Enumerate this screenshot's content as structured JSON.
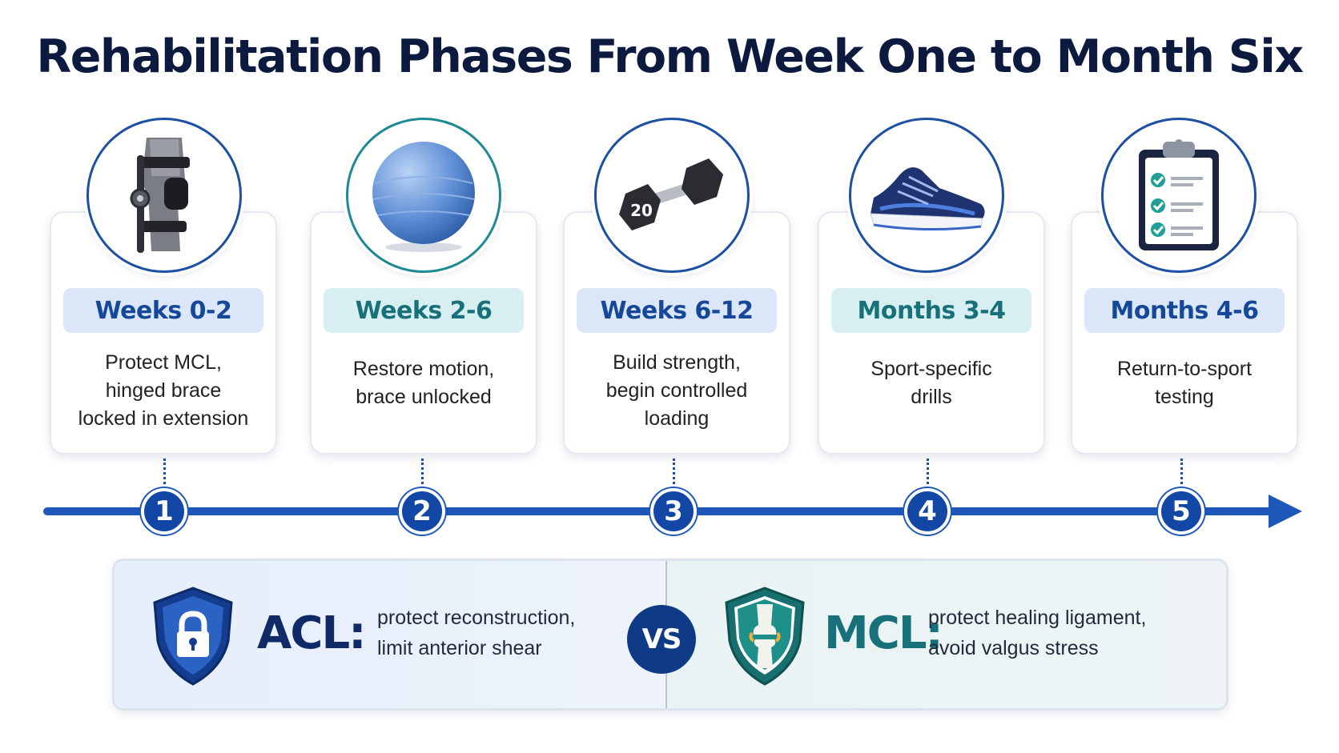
{
  "title": "Rehabilitation Phases From Week One to Month Six",
  "phases": [
    {
      "step": "1",
      "period": "Weeks 0-2",
      "line1": "Protect MCL,",
      "line2": "hinged brace",
      "line3": "locked in extension",
      "icon": "knee-brace-icon"
    },
    {
      "step": "2",
      "period": "Weeks 2-6",
      "line1": "Restore motion,",
      "line2": "brace unlocked",
      "line3": "",
      "icon": "exercise-ball-icon"
    },
    {
      "step": "3",
      "period": "Weeks 6-12",
      "line1": "Build strength,",
      "line2": "begin controlled",
      "line3": "loading",
      "icon": "dumbbell-icon",
      "dumbbell_label": "20"
    },
    {
      "step": "4",
      "period": "Months 3-4",
      "line1": "Sport-specific",
      "line2": "drills",
      "line3": "",
      "icon": "running-shoe-icon"
    },
    {
      "step": "5",
      "period": "Months 4-6",
      "line1": "Return-to-sport",
      "line2": "testing",
      "line3": "",
      "icon": "clipboard-checklist-icon"
    }
  ],
  "comparison": {
    "acl": {
      "name": "ACL:",
      "line1": "protect reconstruction,",
      "line2": "limit anterior shear",
      "icon": "lock-shield-icon"
    },
    "vs": "VS",
    "mcl": {
      "name": "MCL:",
      "line1": "protect healing ligament,",
      "line2": "avoid valgus stress",
      "icon": "knee-joint-shield-icon"
    }
  },
  "colors": {
    "navy": "#0d1a3f",
    "blue": "#1d57b9",
    "teal": "#1d8a93",
    "acl": "#0f2a66",
    "mcl": "#17707a"
  }
}
